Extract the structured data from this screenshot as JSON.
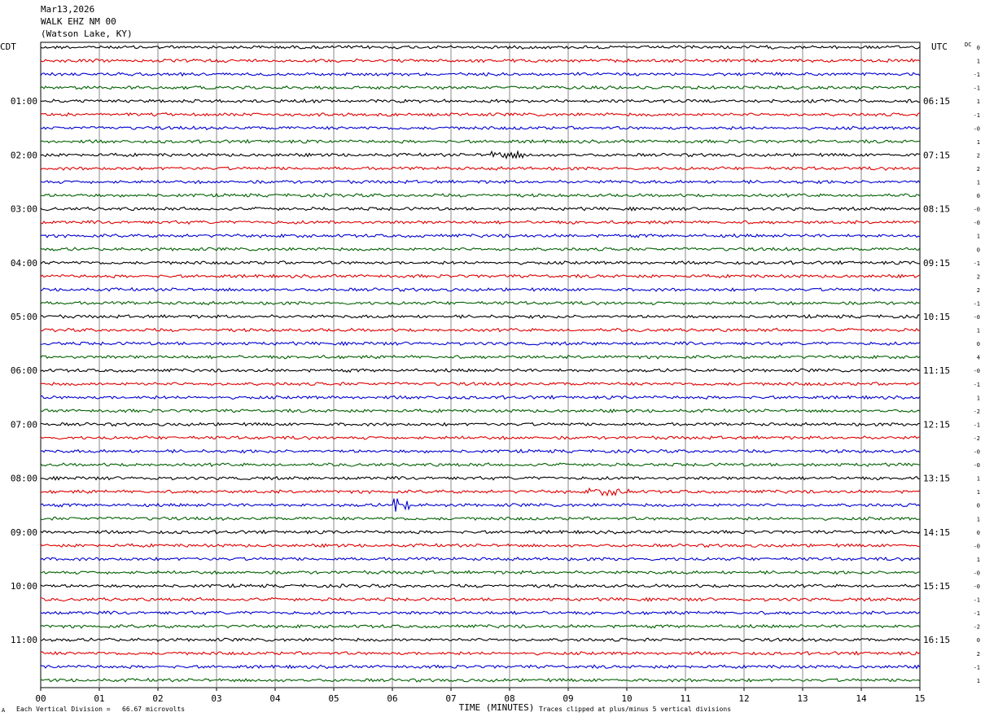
{
  "header": {
    "date": "Mar13,2026",
    "station": "WALK EHZ NM 00",
    "location": "(Watson Lake, KY)"
  },
  "chart_data": {
    "type": "line",
    "plot": "helicorder seismogram",
    "left_zone": "CDT",
    "right_zone": "UTC",
    "dc_header": "DC",
    "xlabel": "TIME (MINUTES)",
    "xlim": [
      0,
      15
    ],
    "x_ticks": [
      "00",
      "01",
      "02",
      "03",
      "04",
      "05",
      "06",
      "07",
      "08",
      "09",
      "10",
      "11",
      "12",
      "13",
      "14",
      "15"
    ],
    "row_count": 48,
    "rows_per_hour": 4,
    "trace_colors": [
      "#000000",
      "#e00000",
      "#0000d0",
      "#006000"
    ],
    "left_hour_labels": [
      "01:00",
      "02:00",
      "03:00",
      "04:00",
      "05:00",
      "06:00",
      "07:00",
      "08:00",
      "09:00",
      "10:00",
      "11:00"
    ],
    "right_hour_labels": [
      "06:15",
      "07:15",
      "08:15",
      "09:15",
      "10:15",
      "11:15",
      "12:15",
      "13:15",
      "14:15",
      "15:15",
      "16:15"
    ],
    "dc_offsets": [
      "0",
      "1",
      "-1",
      "-1",
      "1",
      "-1",
      "-0",
      "1",
      "2",
      "2",
      "1",
      "0",
      "-0",
      "-0",
      "1",
      "0",
      "-1",
      "2",
      "2",
      "-1",
      "-0",
      "1",
      "0",
      "4",
      "-0",
      "-1",
      "1",
      "-2",
      "-1",
      "-2",
      "-0",
      "-0",
      "1",
      "1",
      "0",
      "1",
      "0",
      "-0",
      "1",
      "-0",
      "-0",
      "-1",
      "-1",
      "-2",
      "0",
      "2",
      "-1",
      "1"
    ],
    "events": [
      {
        "row": 34,
        "minute": 6.05,
        "note": "spike"
      },
      {
        "row": 34,
        "minute": 6.25,
        "note": "spike"
      },
      {
        "row": 33,
        "minute": 9.7,
        "note": "burst"
      },
      {
        "row": 8,
        "minute": 7.9,
        "note": "burst"
      }
    ],
    "footer_left": "Each Vertical Division =   66.67 microvolts",
    "footer_right": "Traces clipped at plus/minus 5 vertical divisions",
    "corner_mark": "A"
  }
}
